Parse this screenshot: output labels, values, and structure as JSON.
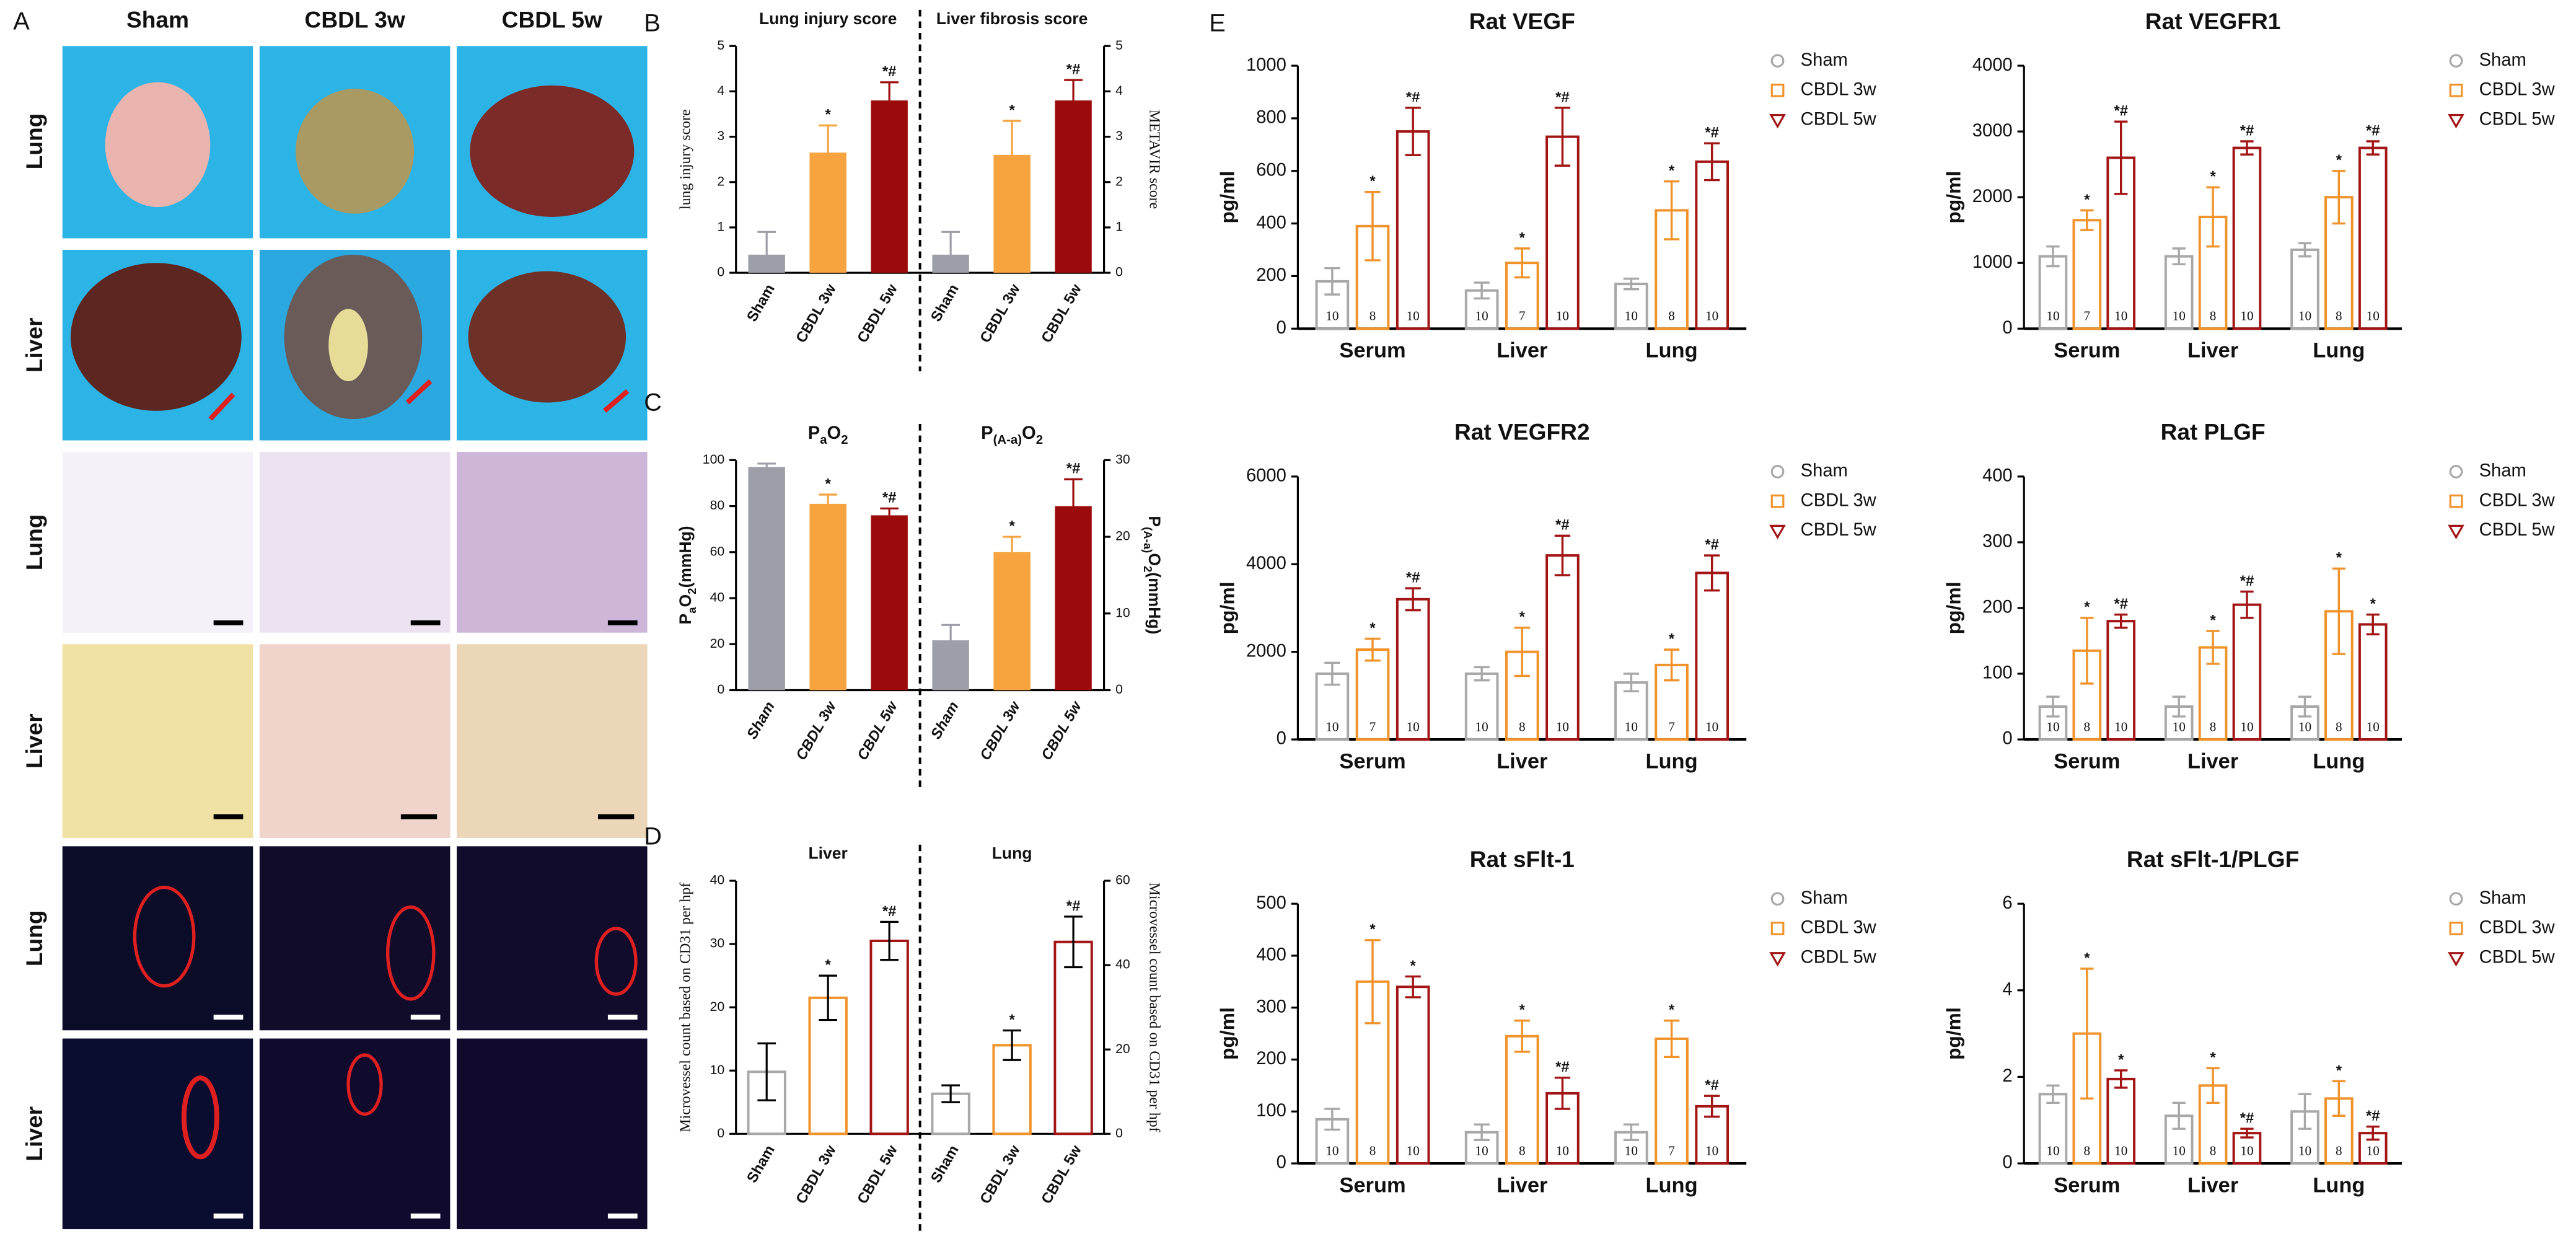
{
  "panel_labels": [
    "A",
    "B",
    "C",
    "D",
    "E"
  ],
  "panel_a": {
    "columns": [
      "Sham",
      "CBDL 3w",
      "CBDL 5w"
    ],
    "rows": [
      "Lung",
      "Liver",
      "Lung",
      "Liver",
      "Lung",
      "Liver"
    ]
  },
  "chart_data": [
    {
      "type": "bar",
      "ylabel": "lung injury score",
      "ylim": [
        0,
        5
      ],
      "yticks": [
        0,
        1,
        2,
        3,
        4,
        5
      ],
      "y2label": "METAVIR score",
      "y2lim": [
        0,
        5
      ],
      "y2ticks": [
        0,
        1,
        2,
        3,
        4,
        5
      ],
      "colors": [
        "#9e9ea8",
        "#f6a340",
        "#9c0b0b"
      ],
      "hollow": false,
      "divider": true,
      "groups": [
        {
          "title": "Lung injury score",
          "axis": "y",
          "categories": [
            "Sham",
            "CBDL 3w",
            "CBDL 5w"
          ],
          "values": [
            0.4,
            2.65,
            3.8
          ],
          "errors": [
            0.5,
            0.6,
            0.4
          ],
          "annotations": [
            null,
            "*",
            "*#"
          ]
        },
        {
          "title": "Liver fibrosis  score",
          "axis": "y2",
          "categories": [
            "Sham",
            "CBDL 3w",
            "CBDL 5w"
          ],
          "values": [
            0.4,
            2.6,
            3.8
          ],
          "errors": [
            0.5,
            0.75,
            0.45
          ],
          "annotations": [
            null,
            "*",
            "*#"
          ]
        }
      ]
    },
    {
      "type": "bar",
      "ylabel": [
        {
          "t": "P"
        },
        {
          "t": "a",
          "sub": true
        },
        {
          "t": "O"
        },
        {
          "t": "2",
          "sub": true
        },
        {
          "t": "(mmHg)"
        }
      ],
      "ylim": [
        0,
        100
      ],
      "yticks": [
        0,
        20,
        40,
        60,
        80,
        100
      ],
      "y2label": [
        {
          "t": "P"
        },
        {
          "t": "(A-a)",
          "sub": true
        },
        {
          "t": "O"
        },
        {
          "t": "2",
          "sub": true
        },
        {
          "t": "(mmHg)"
        }
      ],
      "y2lim": [
        0,
        30
      ],
      "y2ticks": [
        0,
        10,
        20,
        30
      ],
      "colors": [
        "#9e9ea8",
        "#f6a340",
        "#9c0b0b"
      ],
      "hollow": false,
      "divider": true,
      "groups": [
        {
          "title": [
            {
              "t": "P"
            },
            {
              "t": "a",
              "sub": true
            },
            {
              "t": "O"
            },
            {
              "t": "2",
              "sub": true
            }
          ],
          "axis": "y",
          "categories": [
            "Sham",
            "CBDL 3w",
            "CBDL 5w"
          ],
          "values": [
            97,
            81,
            76
          ],
          "errors": [
            1.5,
            4,
            3
          ],
          "annotations": [
            null,
            "*",
            "*#"
          ]
        },
        {
          "title": [
            {
              "t": "P"
            },
            {
              "t": "(A-a)",
              "sub": true
            },
            {
              "t": "O"
            },
            {
              "t": "2",
              "sub": true
            }
          ],
          "axis": "y2",
          "categories": [
            "Sham",
            "CBDL 3w",
            "CBDL 5w"
          ],
          "values": [
            6.5,
            18,
            24
          ],
          "errors": [
            2,
            2,
            3.5
          ],
          "annotations": [
            null,
            "*",
            "*#"
          ]
        }
      ]
    },
    {
      "type": "bar",
      "ylabel": "Microvessel count based on CD31 per hpf",
      "ylim": [
        0,
        40
      ],
      "yticks": [
        0,
        10,
        20,
        30,
        40
      ],
      "y2label": "Microvessel count based on CD31 per hpf",
      "y2lim": [
        0,
        60
      ],
      "y2ticks": [
        0,
        20,
        40,
        60
      ],
      "colors": [
        "#a8a8a8",
        "#f0932b",
        "#a31515"
      ],
      "hollow": true,
      "divider": true,
      "groups": [
        {
          "title": "Liver",
          "axis": "y",
          "categories": [
            "Sham",
            "CBDL 3w",
            "CBDL 5w"
          ],
          "values": [
            9.8,
            21.5,
            30.5
          ],
          "errors": [
            4.5,
            3.5,
            3
          ],
          "annotations": [
            null,
            "*",
            "*#"
          ]
        },
        {
          "title": "Lung",
          "axis": "y2",
          "categories": [
            "Sham",
            "CBDL 3w",
            "CBDL 5w"
          ],
          "values": [
            9.5,
            21,
            45.5
          ],
          "errors": [
            2,
            3.5,
            6
          ],
          "annotations": [
            null,
            "*",
            "*#"
          ]
        }
      ]
    },
    {
      "type": "grouped-bar",
      "title": "Rat VEGF",
      "ylabel": "pg/ml",
      "ylim": [
        0,
        1000
      ],
      "yticks": [
        0,
        200,
        400,
        600,
        800,
        1000
      ],
      "categories": [
        "Serum",
        "Liver",
        "Lung"
      ],
      "series": [
        {
          "name": "Sham",
          "color": "#a8a8a8",
          "marker": "circle",
          "values": [
            180,
            145,
            170
          ],
          "errors": [
            50,
            30,
            20
          ],
          "n": [
            10,
            10,
            10
          ],
          "annotations": [
            null,
            null,
            null
          ]
        },
        {
          "name": "CBDL 3w",
          "color": "#f0932b",
          "marker": "square",
          "values": [
            390,
            250,
            450
          ],
          "errors": [
            130,
            55,
            110
          ],
          "n": [
            8,
            7,
            8
          ],
          "annotations": [
            "*",
            "*",
            "*"
          ]
        },
        {
          "name": "CBDL 5w",
          "color": "#a31515",
          "marker": "triangle",
          "values": [
            750,
            730,
            635
          ],
          "errors": [
            90,
            110,
            70
          ],
          "n": [
            10,
            10,
            10
          ],
          "annotations": [
            "*#",
            "*#",
            "*#"
          ]
        }
      ]
    },
    {
      "type": "grouped-bar",
      "title": "Rat VEGFR1",
      "ylabel": "pg/ml",
      "ylim": [
        0,
        4000
      ],
      "yticks": [
        0,
        1000,
        2000,
        3000,
        4000
      ],
      "categories": [
        "Serum",
        "Liver",
        "Lung"
      ],
      "series": [
        {
          "name": "Sham",
          "color": "#a8a8a8",
          "marker": "circle",
          "values": [
            1100,
            1100,
            1200
          ],
          "errors": [
            150,
            120,
            100
          ],
          "n": [
            10,
            10,
            10
          ],
          "annotations": [
            null,
            null,
            null
          ]
        },
        {
          "name": "CBDL 3w",
          "color": "#f0932b",
          "marker": "square",
          "values": [
            1650,
            1700,
            2000
          ],
          "errors": [
            150,
            450,
            400
          ],
          "n": [
            7,
            8,
            8
          ],
          "annotations": [
            "*",
            "*",
            "*"
          ]
        },
        {
          "name": "CBDL 5w",
          "color": "#a31515",
          "marker": "triangle",
          "values": [
            2600,
            2750,
            2750
          ],
          "errors": [
            550,
            100,
            100
          ],
          "n": [
            10,
            10,
            10
          ],
          "annotations": [
            "*#",
            "*#",
            "*#"
          ]
        }
      ]
    },
    {
      "type": "grouped-bar",
      "title": "Rat VEGFR2",
      "ylabel": "pg/ml",
      "ylim": [
        0,
        6000
      ],
      "yticks": [
        0,
        2000,
        4000,
        6000
      ],
      "categories": [
        "Serum",
        "Liver",
        "Lung"
      ],
      "series": [
        {
          "name": "Sham",
          "color": "#a8a8a8",
          "marker": "circle",
          "values": [
            1500,
            1500,
            1300
          ],
          "errors": [
            250,
            150,
            200
          ],
          "n": [
            10,
            10,
            10
          ],
          "annotations": [
            null,
            null,
            null
          ]
        },
        {
          "name": "CBDL 3w",
          "color": "#f0932b",
          "marker": "square",
          "values": [
            2050,
            2000,
            1700
          ],
          "errors": [
            250,
            550,
            350
          ],
          "n": [
            7,
            8,
            7
          ],
          "annotations": [
            "*",
            "*",
            "*"
          ]
        },
        {
          "name": "CBDL 5w",
          "color": "#a31515",
          "marker": "triangle",
          "values": [
            3200,
            4200,
            3800
          ],
          "errors": [
            250,
            450,
            400
          ],
          "n": [
            10,
            10,
            10
          ],
          "annotations": [
            "*#",
            "*#",
            "*#"
          ]
        }
      ]
    },
    {
      "type": "grouped-bar",
      "title": "Rat PLGF",
      "ylabel": "pg/ml",
      "ylim": [
        0,
        400
      ],
      "yticks": [
        0,
        100,
        200,
        300,
        400
      ],
      "categories": [
        "Serum",
        "Liver",
        "Lung"
      ],
      "series": [
        {
          "name": "Sham",
          "color": "#a8a8a8",
          "marker": "circle",
          "values": [
            50,
            50,
            50
          ],
          "errors": [
            15,
            15,
            15
          ],
          "n": [
            10,
            10,
            10
          ],
          "annotations": [
            null,
            null,
            null
          ]
        },
        {
          "name": "CBDL 3w",
          "color": "#f0932b",
          "marker": "square",
          "values": [
            135,
            140,
            195
          ],
          "errors": [
            50,
            25,
            65
          ],
          "n": [
            8,
            8,
            8
          ],
          "annotations": [
            "*",
            "*",
            "*"
          ]
        },
        {
          "name": "CBDL 5w",
          "color": "#a31515",
          "marker": "triangle",
          "values": [
            180,
            205,
            175
          ],
          "errors": [
            10,
            20,
            15
          ],
          "n": [
            10,
            10,
            10
          ],
          "annotations": [
            "*#",
            "*#",
            "*"
          ]
        }
      ]
    },
    {
      "type": "grouped-bar",
      "title": "Rat sFlt-1",
      "ylabel": "pg/ml",
      "ylim": [
        0,
        500
      ],
      "yticks": [
        0,
        100,
        200,
        300,
        400,
        500
      ],
      "categories": [
        "Serum",
        "Liver",
        "Lung"
      ],
      "series": [
        {
          "name": "Sham",
          "color": "#a8a8a8",
          "marker": "circle",
          "values": [
            85,
            60,
            60
          ],
          "errors": [
            20,
            15,
            15
          ],
          "n": [
            10,
            10,
            10
          ],
          "annotations": [
            null,
            null,
            null
          ]
        },
        {
          "name": "CBDL 3w",
          "color": "#f0932b",
          "marker": "square",
          "values": [
            350,
            245,
            240
          ],
          "errors": [
            80,
            30,
            35
          ],
          "n": [
            8,
            8,
            7
          ],
          "annotations": [
            "*",
            "*",
            "*"
          ]
        },
        {
          "name": "CBDL 5w",
          "color": "#a31515",
          "marker": "triangle",
          "values": [
            340,
            135,
            110
          ],
          "errors": [
            20,
            30,
            20
          ],
          "n": [
            10,
            10,
            10
          ],
          "annotations": [
            "*",
            "*#",
            "*#"
          ]
        }
      ]
    },
    {
      "type": "grouped-bar",
      "title": "Rat sFlt-1/PLGF",
      "ylabel": "pg/ml",
      "ylim": [
        0,
        6
      ],
      "yticks": [
        0,
        2,
        4,
        6
      ],
      "categories": [
        "Serum",
        "Liver",
        "Lung"
      ],
      "series": [
        {
          "name": "Sham",
          "color": "#a8a8a8",
          "marker": "circle",
          "values": [
            1.6,
            1.1,
            1.2
          ],
          "errors": [
            0.2,
            0.3,
            0.4
          ],
          "n": [
            10,
            10,
            10
          ],
          "annotations": [
            null,
            null,
            null
          ]
        },
        {
          "name": "CBDL 3w",
          "color": "#f0932b",
          "marker": "square",
          "values": [
            3.0,
            1.8,
            1.5
          ],
          "errors": [
            1.5,
            0.4,
            0.4
          ],
          "n": [
            8,
            8,
            8
          ],
          "annotations": [
            "*",
            "*",
            "*"
          ]
        },
        {
          "name": "CBDL 5w",
          "color": "#a31515",
          "marker": "triangle",
          "values": [
            1.95,
            0.7,
            0.7
          ],
          "errors": [
            0.2,
            0.1,
            0.15
          ],
          "n": [
            10,
            10,
            10
          ],
          "annotations": [
            "*",
            "*#",
            "*#"
          ]
        }
      ]
    }
  ]
}
